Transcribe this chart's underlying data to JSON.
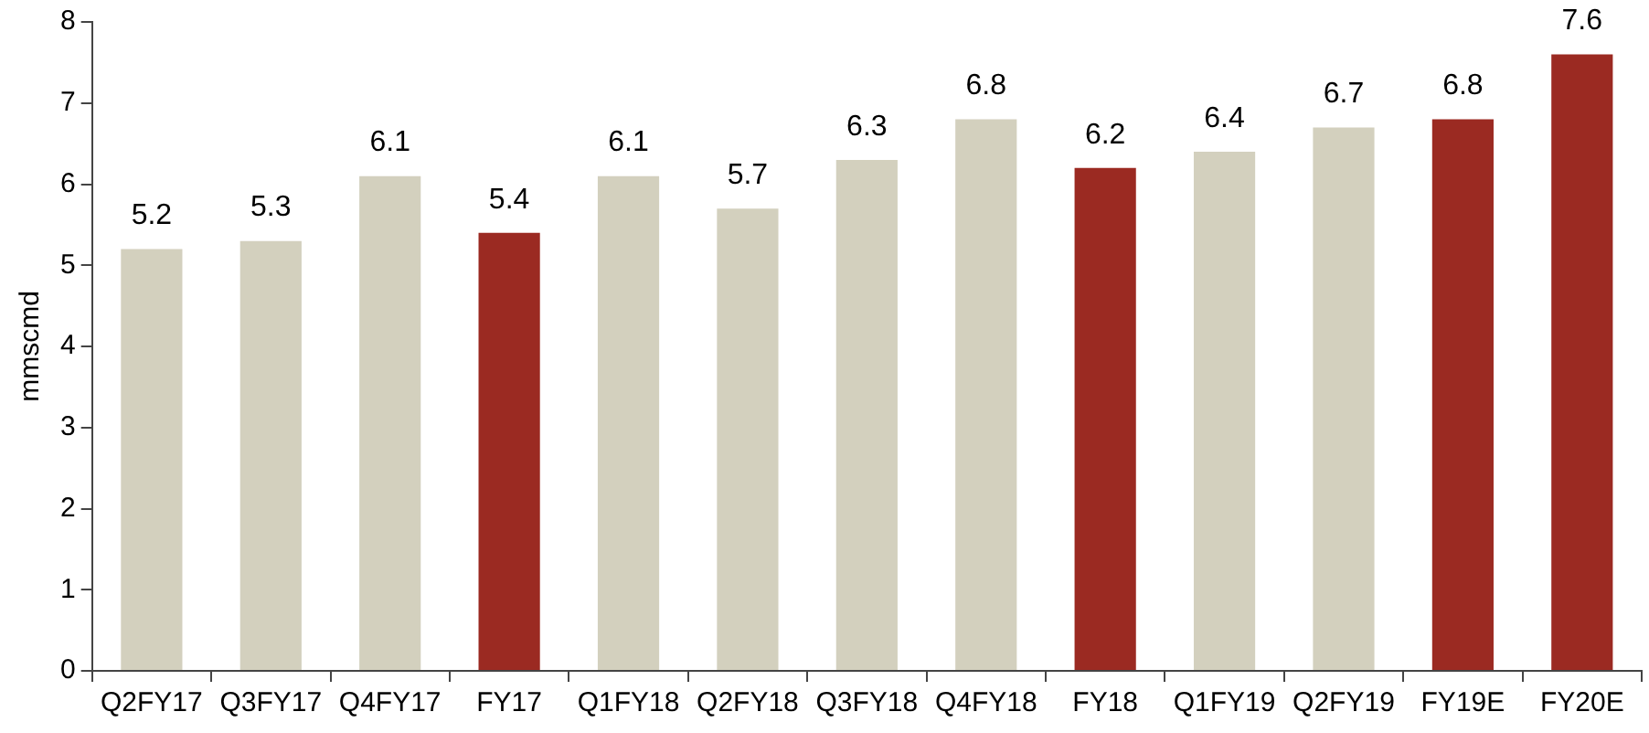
{
  "chart_data": {
    "type": "bar",
    "ylabel": "mmscmd",
    "categories": [
      "Q2FY17",
      "Q3FY17",
      "Q4FY17",
      "FY17",
      "Q1FY18",
      "Q2FY18",
      "Q3FY18",
      "Q4FY18",
      "FY18",
      "Q1FY19",
      "Q2FY19",
      "FY19E",
      "FY20E"
    ],
    "values": [
      5.2,
      5.3,
      6.1,
      5.4,
      6.1,
      5.7,
      6.3,
      6.8,
      6.2,
      6.4,
      6.7,
      6.8,
      7.6
    ],
    "colors": [
      "#d3d0be",
      "#d3d0be",
      "#d3d0be",
      "#9b2a22",
      "#d3d0be",
      "#d3d0be",
      "#d3d0be",
      "#d3d0be",
      "#9b2a22",
      "#d3d0be",
      "#d3d0be",
      "#9b2a22",
      "#9b2a22"
    ],
    "ylim": [
      0,
      8
    ],
    "yticks": [
      0,
      1,
      2,
      3,
      4,
      5,
      6,
      7,
      8
    ],
    "grid": false,
    "legend": false,
    "data_labels": true
  }
}
